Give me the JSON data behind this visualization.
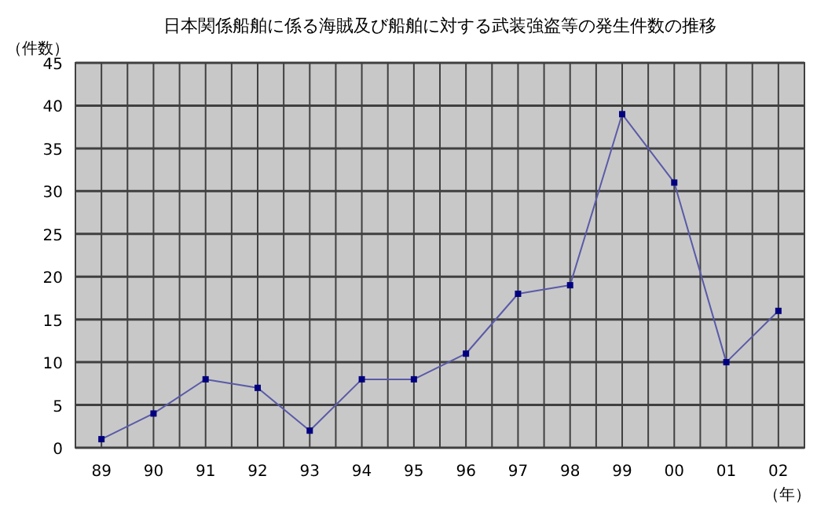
{
  "chart_data": {
    "type": "line",
    "title": "日本関係船舶に係る海賊及び船舶に対する武装強盗等の発生件数の推移",
    "ylabel": "（件数）",
    "xlabel": "（年）",
    "categories": [
      "89",
      "90",
      "91",
      "92",
      "93",
      "94",
      "95",
      "96",
      "97",
      "98",
      "99",
      "00",
      "01",
      "02"
    ],
    "series": [
      {
        "color": "#5a5aa8",
        "values": [
          1,
          4,
          8,
          7,
          2,
          8,
          8,
          11,
          18,
          19,
          39,
          31,
          10,
          16
        ]
      }
    ],
    "ylim": [
      0,
      45
    ],
    "yticks": [
      0,
      5,
      10,
      15,
      20,
      25,
      30,
      35,
      40,
      45
    ],
    "grid": true,
    "marker": "square",
    "line_style": "solid"
  }
}
